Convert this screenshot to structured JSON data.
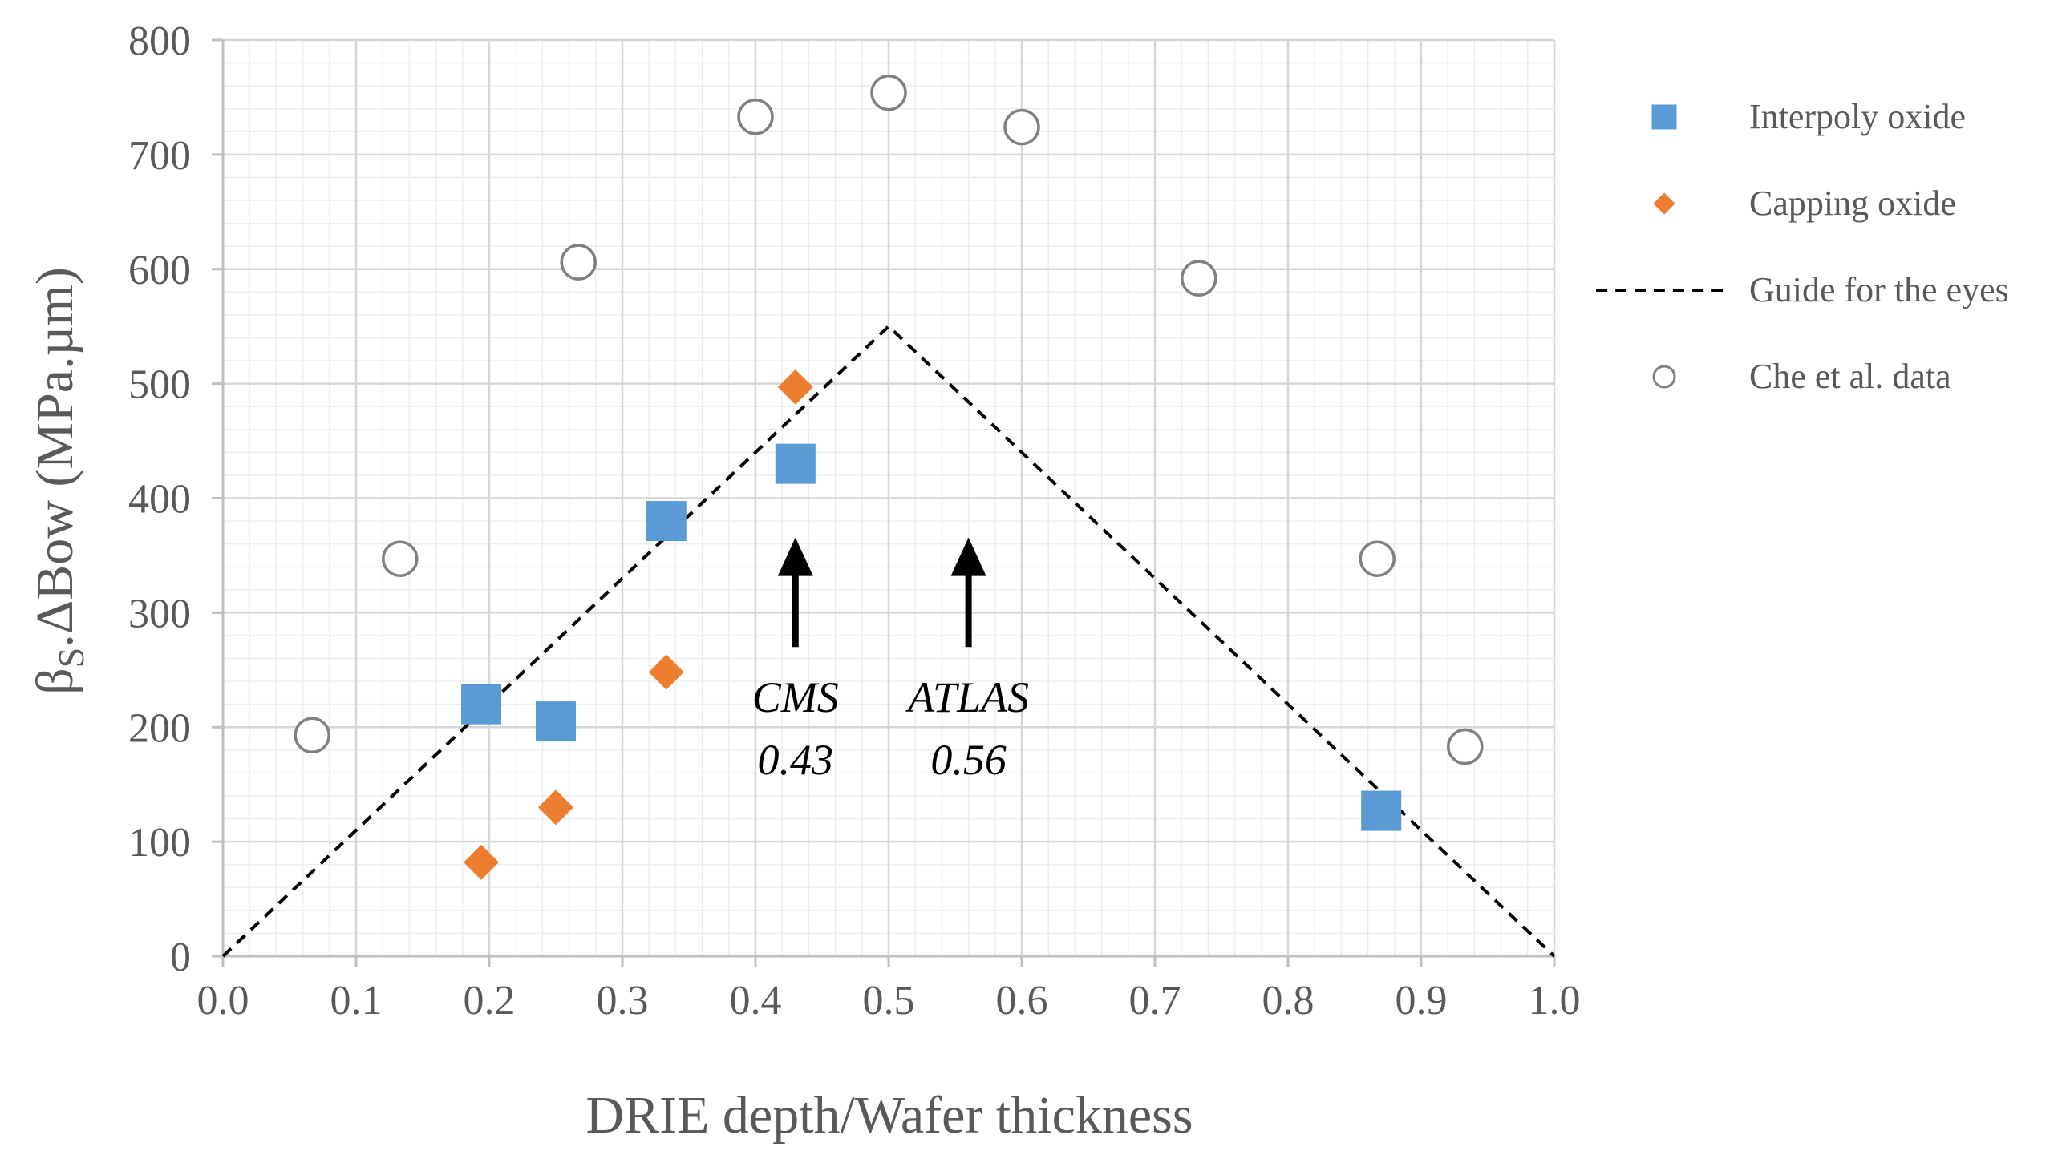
{
  "chart_data": {
    "type": "scatter",
    "title": "",
    "xlabel": "DRIE depth/Wafer thickness",
    "ylabel_main": "β",
    "ylabel_sub": "S",
    "ylabel_rest": ".ΔBow (MPa.µm)",
    "xlim": [
      0.0,
      1.0
    ],
    "ylim": [
      0,
      800
    ],
    "x_ticks": [
      "0.0",
      "0.1",
      "0.2",
      "0.3",
      "0.4",
      "0.5",
      "0.6",
      "0.7",
      "0.8",
      "0.9",
      "1.0"
    ],
    "y_ticks": [
      "0",
      "100",
      "200",
      "300",
      "400",
      "500",
      "600",
      "700",
      "800"
    ],
    "grid": "major and minor",
    "legend_position": "right",
    "series": [
      {
        "name": "Interpoly oxide",
        "marker": "square",
        "color": "#5B9BD5",
        "points": [
          [
            0.194,
            220
          ],
          [
            0.25,
            205
          ],
          [
            0.333,
            380
          ],
          [
            0.43,
            430
          ],
          [
            0.87,
            127
          ]
        ]
      },
      {
        "name": "Capping oxide",
        "marker": "diamond",
        "color": "#ED7D31",
        "points": [
          [
            0.194,
            82
          ],
          [
            0.25,
            130
          ],
          [
            0.333,
            248
          ],
          [
            0.43,
            497
          ]
        ]
      },
      {
        "name": "Guide for the eyes",
        "marker": "dashed-line",
        "color": "#000000",
        "points": [
          [
            0.0,
            0
          ],
          [
            0.5,
            550
          ],
          [
            1.0,
            0
          ]
        ]
      },
      {
        "name": "Che et al. data",
        "marker": "open-circle",
        "color": "#808080",
        "points": [
          [
            0.067,
            193
          ],
          [
            0.133,
            347
          ],
          [
            0.267,
            606
          ],
          [
            0.4,
            733
          ],
          [
            0.5,
            754
          ],
          [
            0.6,
            724
          ],
          [
            0.733,
            592
          ],
          [
            0.867,
            347
          ],
          [
            0.933,
            183
          ]
        ]
      }
    ],
    "annotations": [
      {
        "name": "CMS",
        "label": "CMS",
        "value_label": "0.43",
        "x": 0.43,
        "arrow_from": 270,
        "arrow_to": 360
      },
      {
        "name": "ATLAS",
        "label": "ATLAS",
        "value_label": "0.56",
        "x": 0.56,
        "arrow_from": 270,
        "arrow_to": 360
      }
    ]
  }
}
